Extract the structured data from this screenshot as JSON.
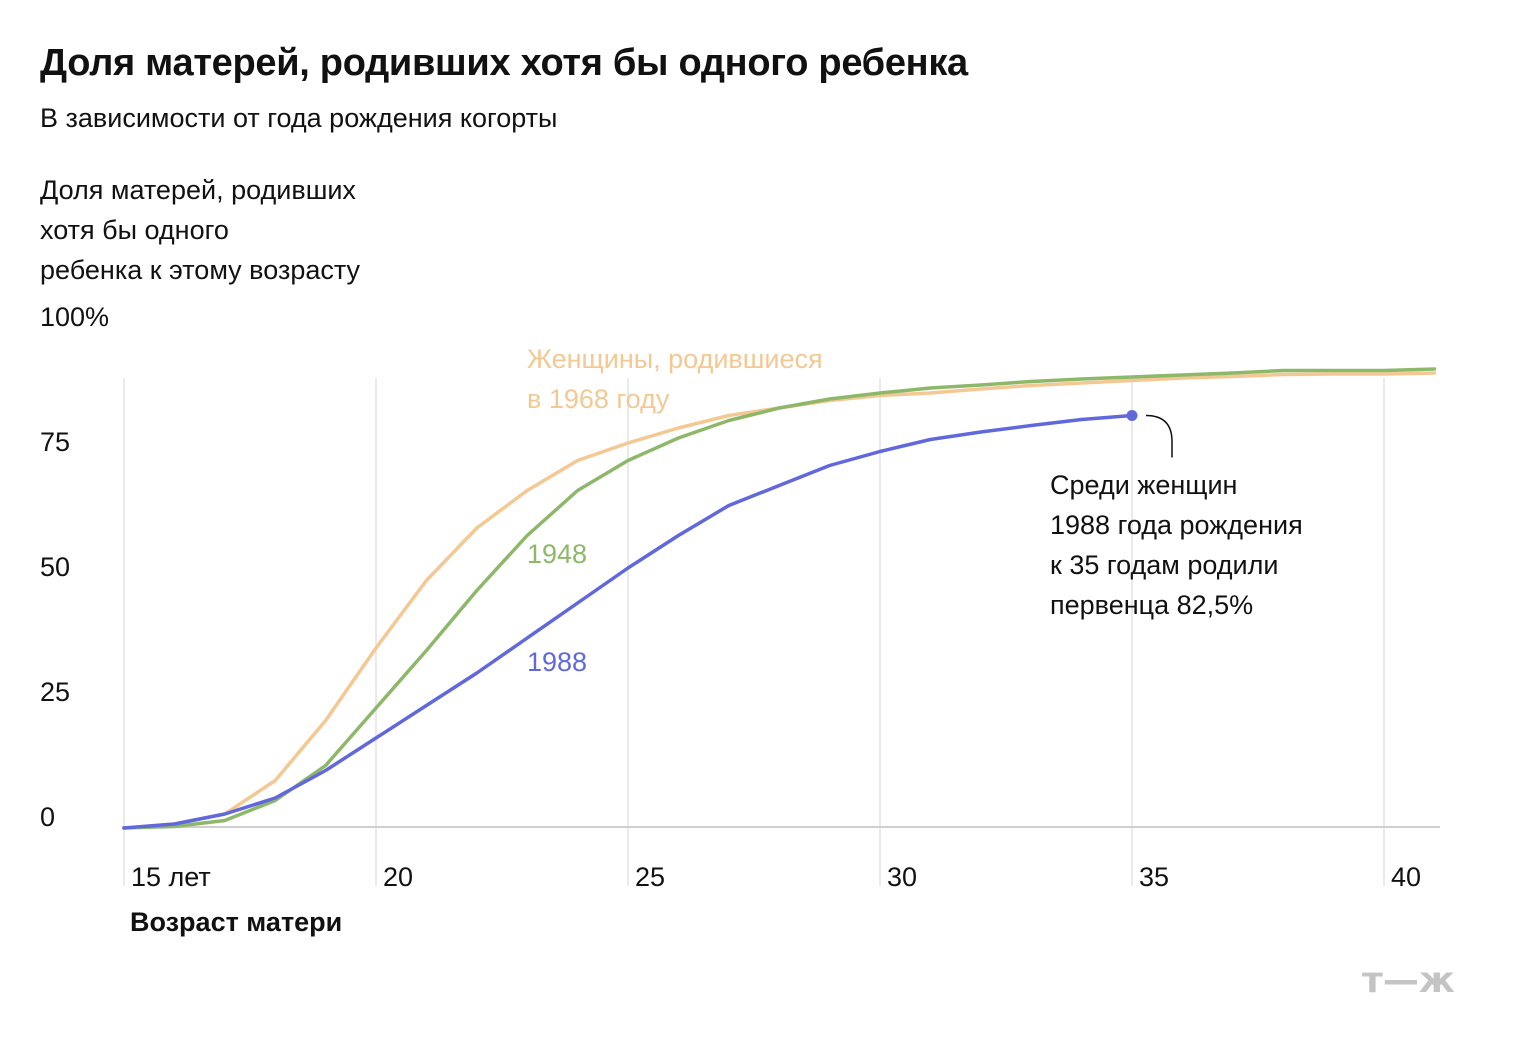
{
  "header": {
    "title": "Доля матерей, родивших хотя бы одного ребенка",
    "subtitle": "В зависимости от года рождения когорты"
  },
  "chart_data": {
    "type": "line",
    "ylabel_lines": [
      "Доля матерей, родивших",
      "хотя бы одного",
      "ребенка к этому возрасту"
    ],
    "xlabel": "Возраст матери",
    "xlim": [
      15,
      41
    ],
    "ylim": [
      0,
      100
    ],
    "x_ticks": [
      {
        "value": 15,
        "label": "15 лет"
      },
      {
        "value": 20,
        "label": "20"
      },
      {
        "value": 25,
        "label": "25"
      },
      {
        "value": 30,
        "label": "30"
      },
      {
        "value": 35,
        "label": "35"
      },
      {
        "value": 40,
        "label": "40"
      }
    ],
    "y_ticks": [
      {
        "value": 0,
        "label": "0"
      },
      {
        "value": 25,
        "label": "25"
      },
      {
        "value": 50,
        "label": "50"
      },
      {
        "value": 75,
        "label": "75"
      },
      {
        "value": 100,
        "label": "100%"
      }
    ],
    "series": [
      {
        "name": "1968",
        "label_lines": [
          "Женщины, родившиеся",
          "в 1968 году"
        ],
        "color": "#f3c893",
        "points": [
          [
            15,
            0
          ],
          [
            16,
            0.8
          ],
          [
            17,
            2.8
          ],
          [
            18,
            9.5
          ],
          [
            19,
            21.5
          ],
          [
            20,
            36
          ],
          [
            21,
            49.5
          ],
          [
            22,
            60
          ],
          [
            23,
            67.5
          ],
          [
            24,
            73.5
          ],
          [
            25,
            77
          ],
          [
            26,
            80
          ],
          [
            27,
            82.5
          ],
          [
            28,
            84
          ],
          [
            29,
            85.5
          ],
          [
            30,
            86.5
          ],
          [
            31,
            87
          ],
          [
            32,
            87.8
          ],
          [
            33,
            88.5
          ],
          [
            34,
            89
          ],
          [
            35,
            89.5
          ],
          [
            36,
            90
          ],
          [
            37,
            90.3
          ],
          [
            38,
            90.7
          ],
          [
            39,
            90.8
          ],
          [
            40,
            90.8
          ],
          [
            41,
            91
          ]
        ]
      },
      {
        "name": "1948",
        "label_lines": [
          "1948"
        ],
        "color": "#8db86a",
        "points": [
          [
            15,
            0
          ],
          [
            16,
            0.3
          ],
          [
            17,
            1.5
          ],
          [
            18,
            5.5
          ],
          [
            19,
            12.5
          ],
          [
            20,
            24
          ],
          [
            21,
            35.5
          ],
          [
            22,
            47.5
          ],
          [
            23,
            58.5
          ],
          [
            24,
            67.5
          ],
          [
            25,
            73.5
          ],
          [
            26,
            78
          ],
          [
            27,
            81.5
          ],
          [
            28,
            84
          ],
          [
            29,
            85.8
          ],
          [
            30,
            87
          ],
          [
            31,
            88
          ],
          [
            32,
            88.6
          ],
          [
            33,
            89.3
          ],
          [
            34,
            89.8
          ],
          [
            35,
            90.2
          ],
          [
            36,
            90.6
          ],
          [
            37,
            91
          ],
          [
            38,
            91.5
          ],
          [
            39,
            91.5
          ],
          [
            40,
            91.5
          ],
          [
            41,
            91.8
          ]
        ]
      },
      {
        "name": "1988",
        "label_lines": [
          "1988"
        ],
        "color": "#6068dc",
        "points": [
          [
            15,
            0
          ],
          [
            16,
            0.8
          ],
          [
            17,
            2.8
          ],
          [
            18,
            6
          ],
          [
            19,
            11.5
          ],
          [
            20,
            18
          ],
          [
            21,
            24.5
          ],
          [
            22,
            31
          ],
          [
            23,
            38
          ],
          [
            24,
            45
          ],
          [
            25,
            52
          ],
          [
            26,
            58.5
          ],
          [
            27,
            64.5
          ],
          [
            28,
            68.5
          ],
          [
            29,
            72.5
          ],
          [
            30,
            75.3
          ],
          [
            31,
            77.7
          ],
          [
            32,
            79.2
          ],
          [
            33,
            80.5
          ],
          [
            34,
            81.7
          ],
          [
            35,
            82.5
          ]
        ]
      }
    ],
    "annotation": {
      "lines": [
        "Среди женщин",
        "1988 года рождения",
        "к 35 годам родили",
        "первенца 82,5%"
      ],
      "x": 35,
      "y": 82.5
    },
    "grid": {
      "vertical": true,
      "horizontal": false
    }
  },
  "brand": {
    "logo_text": "т—ж",
    "logo_color": "#c4c4c4"
  }
}
